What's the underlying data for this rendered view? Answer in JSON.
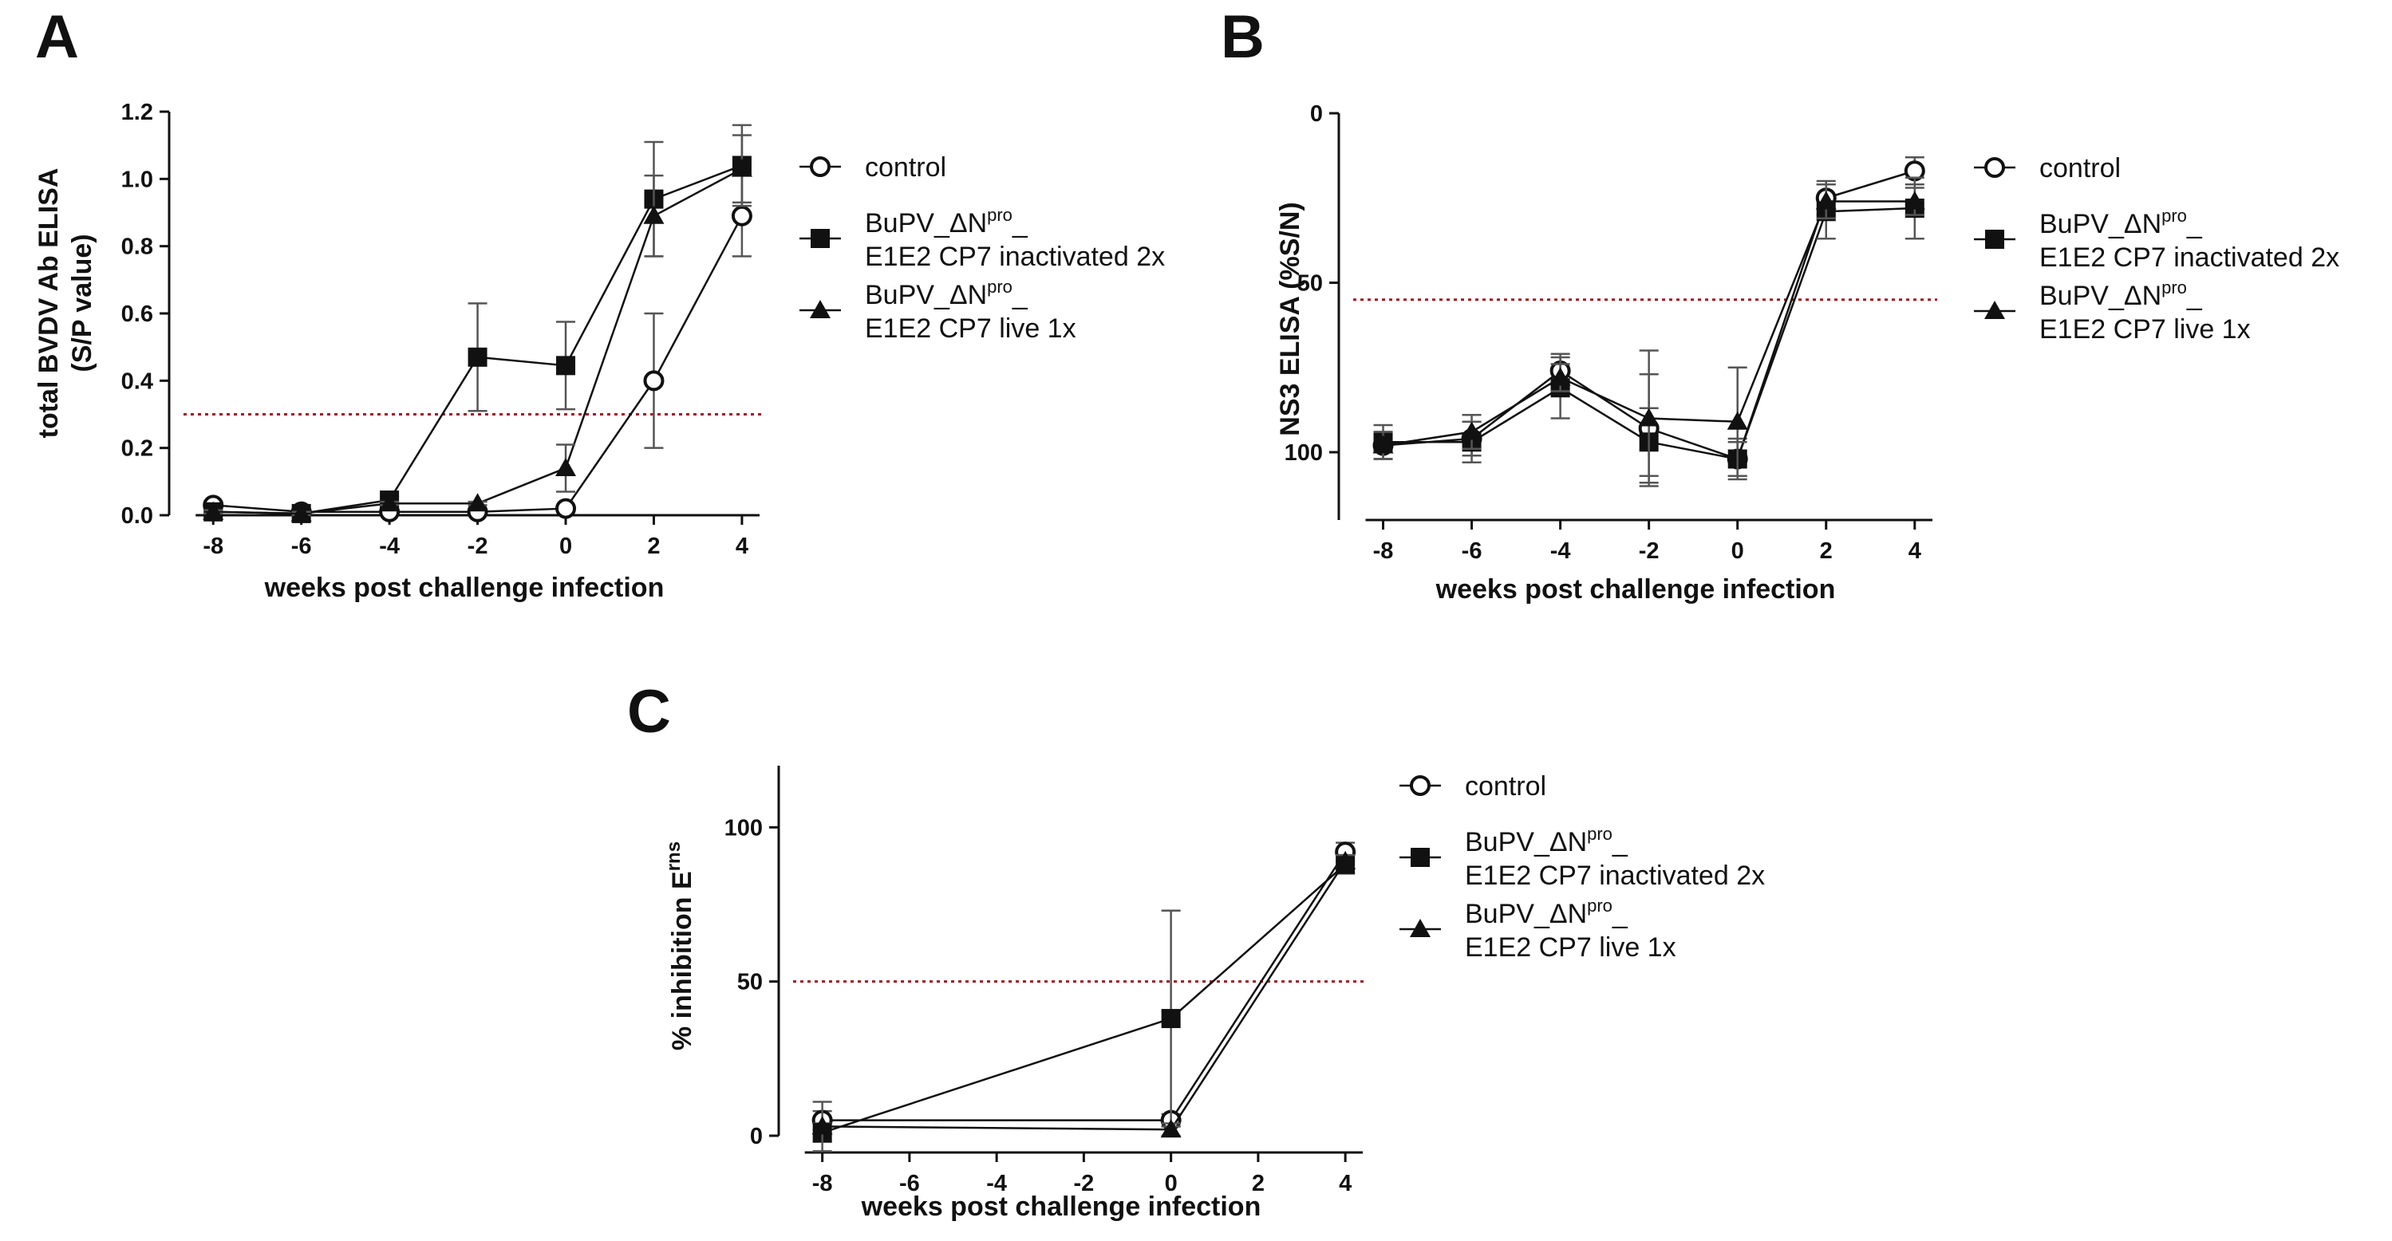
{
  "chart_data": [
    {
      "panel": "A",
      "type": "line",
      "ylabel": "total BVDV Ab ELISA",
      "ylabel2": "(S/P value)",
      "xlabel": "weeks post challenge infection",
      "x": [
        -8,
        -6,
        -4,
        -2,
        0,
        2,
        4
      ],
      "xticks": [
        "-8",
        "-6",
        "-4",
        "-2",
        "0",
        "2",
        "4"
      ],
      "xlim": [
        -9,
        4.4
      ],
      "ylim": [
        0,
        1.2
      ],
      "yticks": [
        "0.0",
        "0.2",
        "0.4",
        "0.6",
        "0.8",
        "1.0",
        "1.2"
      ],
      "ytick_values": [
        0,
        0.2,
        0.4,
        0.6,
        0.8,
        1.0,
        1.2
      ],
      "y_inverted": false,
      "threshold": 0.3,
      "series": [
        {
          "name": "control",
          "label_main": "control",
          "label_sub": "",
          "marker": "circle",
          "values": [
            0.03,
            0.01,
            0.01,
            0.01,
            0.02,
            0.4,
            0.89
          ],
          "errors": [
            0.01,
            0.005,
            0.005,
            0.005,
            0.005,
            0.2,
            0.12
          ]
        },
        {
          "name": "BuPV_ΔNpro_ E1E2 CP7 inactivated 2x",
          "label_main": "BuPV_ΔN",
          "label_sup": "pro",
          "label_tail": "_",
          "label_sub": "E1E2 CP7 inactivated 2x",
          "marker": "square",
          "values": [
            0.01,
            0.005,
            0.045,
            0.47,
            0.445,
            0.94,
            1.04
          ],
          "errors": [
            0.005,
            0.005,
            0.01,
            0.16,
            0.13,
            0.17,
            0.12
          ]
        },
        {
          "name": "BuPV_ΔNpro_ E1E2 CP7 live 1x",
          "label_main": "BuPV_ΔN",
          "label_sup": "pro",
          "label_tail": "_",
          "label_sub": "E1E2 CP7 live 1x",
          "marker": "triangle",
          "values": [
            0.01,
            0.005,
            0.035,
            0.035,
            0.14,
            0.89,
            1.03
          ],
          "errors": [
            0.005,
            0.005,
            0.005,
            0.005,
            0.07,
            0.12,
            0.1
          ]
        }
      ]
    },
    {
      "panel": "B",
      "type": "line",
      "ylabel": "NS3 ELISA (%S/N)",
      "ylabel2": "",
      "xlabel": "weeks post challenge infection",
      "x": [
        -8,
        -6,
        -4,
        -2,
        0,
        2,
        4
      ],
      "xticks": [
        "-8",
        "-6",
        "-4",
        "-2",
        "0",
        "2",
        "4"
      ],
      "xlim": [
        -9,
        4.4
      ],
      "ylim": [
        0,
        120
      ],
      "yticks": [
        "0",
        "50",
        "100"
      ],
      "ytick_values": [
        0,
        50,
        100
      ],
      "y_inverted": true,
      "threshold": 55,
      "series": [
        {
          "name": "control",
          "label_main": "control",
          "label_sub": "",
          "marker": "circle",
          "values": [
            98,
            96,
            76,
            93,
            102,
            25,
            17
          ],
          "errors": [
            4,
            5,
            5,
            16,
            6,
            5,
            4
          ]
        },
        {
          "name": "BuPV_ΔNpro_ E1E2 CP7 inactivated 2x",
          "label_main": "BuPV_ΔN",
          "label_sup": "pro",
          "label_tail": "_",
          "label_sub": "E1E2 CP7 inactivated 2x",
          "marker": "square",
          "values": [
            97,
            97,
            81,
            97,
            102,
            29,
            28
          ],
          "errors": [
            5,
            6,
            9,
            10,
            5,
            8,
            9
          ]
        },
        {
          "name": "BuPV_ΔNpro_ E1E2 CP7 live 1x",
          "label_main": "BuPV_ΔN",
          "label_sup": "pro",
          "label_tail": "_",
          "label_sub": "E1E2 CP7 live 1x",
          "marker": "triangle",
          "values": [
            98,
            94,
            78,
            90,
            91,
            26,
            26
          ],
          "errors": [
            4,
            5,
            4,
            20,
            16,
            5,
            4
          ]
        }
      ]
    },
    {
      "panel": "C",
      "type": "line",
      "ylabel": "% inhibition E",
      "ylabel_sup": "rns",
      "ylabel2": "",
      "xlabel": "weeks post challenge infection",
      "x": [
        -8,
        0,
        4
      ],
      "xticks": [
        "-8",
        "-6",
        "-4",
        "-2",
        "0",
        "2",
        "4"
      ],
      "xtick_values": [
        -8,
        -6,
        -4,
        -2,
        0,
        2,
        4
      ],
      "xlim": [
        -9,
        4.4
      ],
      "ylim": [
        0,
        120
      ],
      "yticks": [
        "0",
        "50",
        "100"
      ],
      "ytick_values": [
        0,
        50,
        100
      ],
      "y_inverted": false,
      "threshold": 50,
      "series": [
        {
          "name": "control",
          "label_main": "control",
          "label_sub": "",
          "marker": "circle",
          "values": [
            5,
            5,
            92
          ],
          "errors": [
            3,
            2,
            3
          ]
        },
        {
          "name": "BuPV_ΔNpro_ E1E2 CP7 inactivated 2x",
          "label_main": "BuPV_ΔN",
          "label_sup": "pro",
          "label_tail": "_",
          "label_sub": "E1E2 CP7 inactivated 2x",
          "marker": "square",
          "values": [
            1,
            38,
            88
          ],
          "errors": [
            3,
            35,
            3
          ]
        },
        {
          "name": "BuPV_ΔNpro_ E1E2 CP7 live 1x",
          "label_main": "BuPV_ΔN",
          "label_sup": "pro",
          "label_tail": "_",
          "label_sub": "E1E2 CP7 live 1x",
          "marker": "triangle",
          "values": [
            3,
            2,
            89
          ],
          "errors": [
            8,
            2,
            2
          ]
        }
      ]
    }
  ],
  "colors": {
    "ink": "#111111",
    "threshold": "#a01820",
    "errorbar": "#555555"
  }
}
